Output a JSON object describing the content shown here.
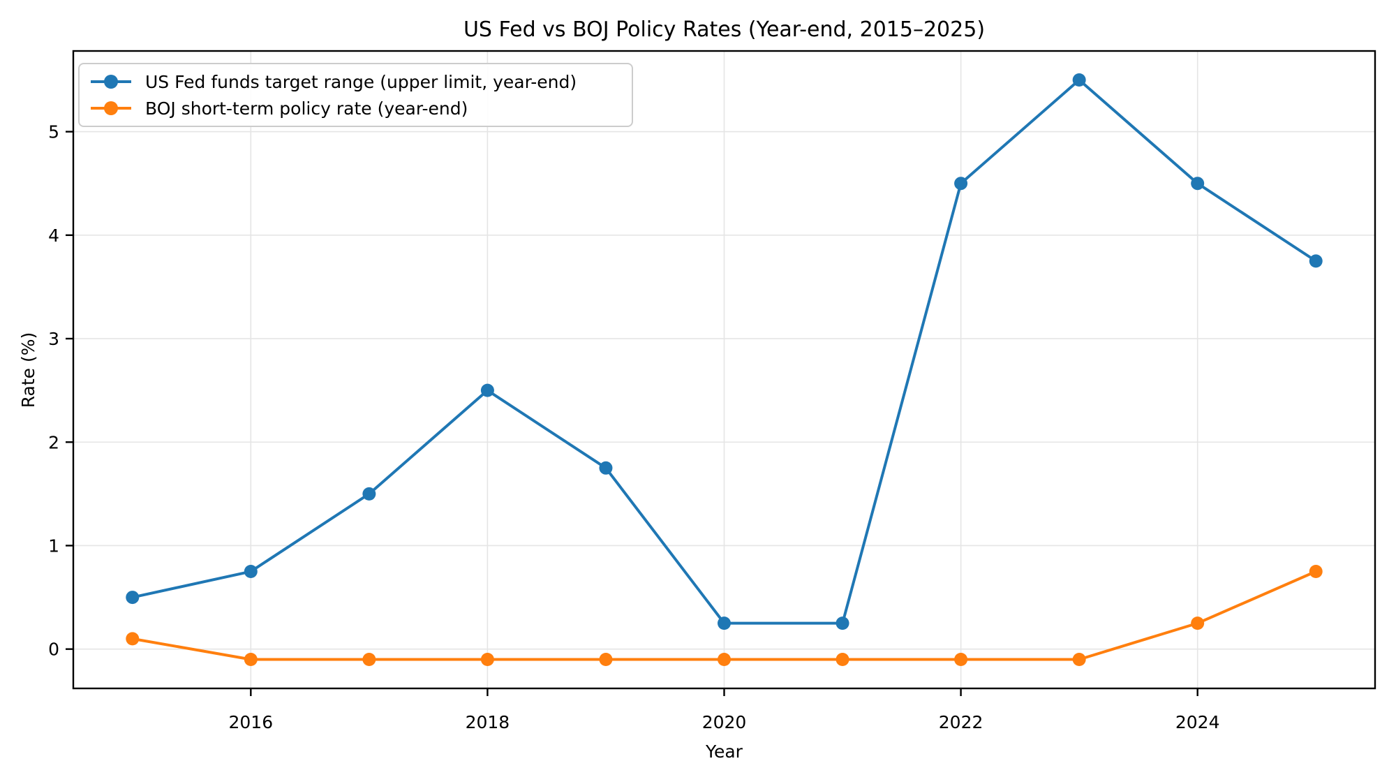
{
  "chart_data": {
    "type": "line",
    "title": "US Fed vs BOJ Policy Rates (Year-end, 2015–2025)",
    "xlabel": "Year",
    "ylabel": "Rate (%)",
    "x": [
      2015,
      2016,
      2017,
      2018,
      2019,
      2020,
      2021,
      2022,
      2023,
      2024,
      2025
    ],
    "series": [
      {
        "name": "US Fed funds target range (upper limit, year-end)",
        "color": "#1f77b4",
        "marker": "o",
        "values": [
          0.5,
          0.75,
          1.5,
          2.5,
          1.75,
          0.25,
          0.25,
          4.5,
          5.5,
          4.5,
          3.75
        ]
      },
      {
        "name": "BOJ short-term policy rate (year-end)",
        "color": "#ff7f0e",
        "marker": "o",
        "values": [
          0.1,
          -0.1,
          -0.1,
          -0.1,
          -0.1,
          -0.1,
          -0.1,
          -0.1,
          -0.1,
          0.25,
          0.75
        ]
      }
    ],
    "xticks": [
      2016,
      2018,
      2020,
      2022,
      2024
    ],
    "yticks": [
      0,
      1,
      2,
      3,
      4,
      5
    ],
    "xlim": [
      2014.5,
      2025.5
    ],
    "ylim": [
      -0.38,
      5.78
    ],
    "grid": true,
    "grid_color": "#e5e5e5",
    "spine_color": "#000000",
    "legend_position": "upper left"
  }
}
